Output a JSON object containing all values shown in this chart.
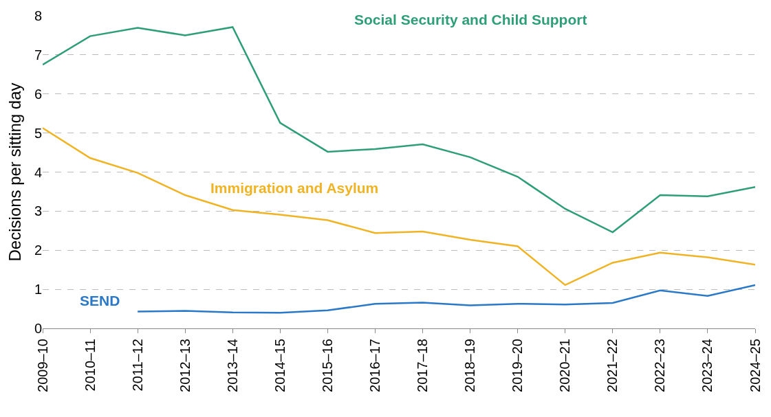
{
  "chart_data": {
    "type": "line",
    "ylabel": "Decisions per sitting day",
    "categories": [
      "2009–10",
      "2010–11",
      "2011–12",
      "2012–13",
      "2013–14",
      "2014–15",
      "2015–16",
      "2016–17",
      "2017–18",
      "2018–19",
      "2019–20",
      "2020–21",
      "2021–22",
      "2022–23",
      "2023–24",
      "2024–25"
    ],
    "series": [
      {
        "name": "Social Security and Child Support",
        "color": "#2e9e77",
        "values": [
          6.75,
          7.48,
          7.69,
          7.5,
          7.71,
          5.26,
          4.52,
          4.59,
          4.71,
          4.38,
          3.88,
          3.06,
          2.46,
          3.41,
          3.38,
          3.62
        ]
      },
      {
        "name": "Immigration and Asylum",
        "color": "#f0b323",
        "values": [
          5.13,
          4.36,
          3.98,
          3.41,
          3.03,
          2.91,
          2.77,
          2.44,
          2.48,
          2.27,
          2.1,
          1.11,
          1.68,
          1.94,
          1.82,
          1.63
        ]
      },
      {
        "name": "SEND",
        "color": "#2a78c8",
        "values": [
          null,
          null,
          0.43,
          0.45,
          0.41,
          0.4,
          0.46,
          0.63,
          0.66,
          0.59,
          0.63,
          0.61,
          0.65,
          0.97,
          0.83,
          1.11
        ]
      }
    ],
    "ylim": [
      0,
      8
    ],
    "yticks": [
      0,
      1,
      2,
      3,
      4,
      5,
      6,
      7,
      8
    ],
    "grid": "y",
    "legend": false,
    "marker": "none",
    "line_style": "solid"
  }
}
